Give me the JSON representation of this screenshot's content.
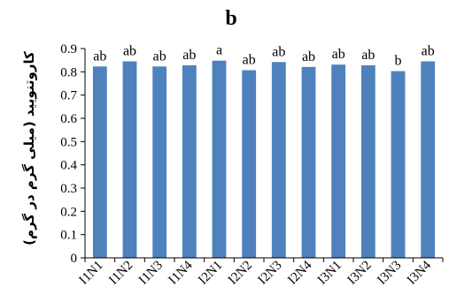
{
  "chart_data": {
    "type": "bar",
    "title": "b",
    "xlabel": "",
    "ylabel": "کاروتنویید (میلی گرم در گرم)",
    "ylim": [
      0,
      0.9
    ],
    "yticks": [
      "0",
      "0.1",
      "0.2",
      "0.3",
      "0.4",
      "0.5",
      "0.6",
      "0.7",
      "0.8",
      "0.9"
    ],
    "grid": false,
    "bar_color": "#4f81bd",
    "categories": [
      "I1N1",
      "I1N2",
      "I1N3",
      "I1N4",
      "I2N1",
      "I2N2",
      "I2N3",
      "I2N4",
      "I3N1",
      "I3N2",
      "I3N3",
      "I3N4"
    ],
    "values": [
      0.823,
      0.845,
      0.823,
      0.828,
      0.848,
      0.807,
      0.842,
      0.821,
      0.831,
      0.828,
      0.803,
      0.845
    ],
    "annotations": [
      "ab",
      "ab",
      "ab",
      "ab",
      "a",
      "ab",
      "ab",
      "ab",
      "ab",
      "ab",
      "b",
      "ab"
    ]
  }
}
